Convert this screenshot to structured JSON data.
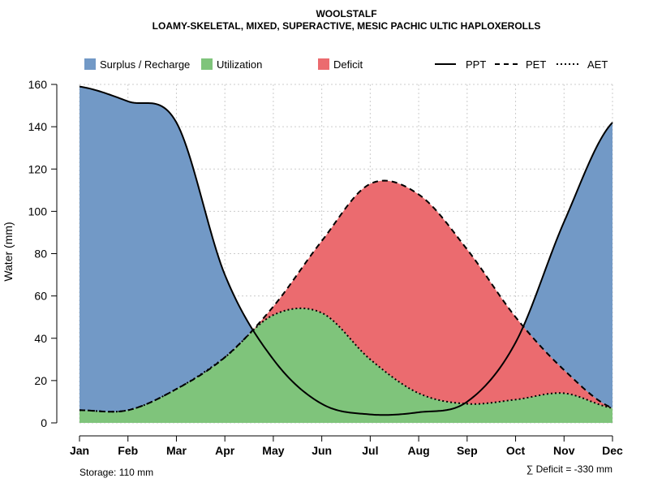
{
  "chart_data": {
    "type": "area",
    "title": "WOOLSTALF",
    "subtitle": "LOAMY-SKELETAL, MIXED, SUPERACTIVE, MESIC PACHIC ULTIC HAPLOXEROLLS",
    "ylabel": "Water (mm)",
    "xlabel": "",
    "ylim": [
      0,
      160
    ],
    "yticks": [
      0,
      20,
      40,
      60,
      80,
      100,
      120,
      140,
      160
    ],
    "grid": true,
    "categories": [
      "Jan",
      "Feb",
      "Mar",
      "Apr",
      "May",
      "Jun",
      "Jul",
      "Aug",
      "Sep",
      "Oct",
      "Nov",
      "Dec"
    ],
    "series": [
      {
        "name": "PPT",
        "style": "solid",
        "values": [
          159,
          152,
          142,
          70,
          30,
          9,
          4,
          5,
          10,
          38,
          95,
          142
        ]
      },
      {
        "name": "PET",
        "style": "dashed",
        "values": [
          6,
          6,
          16,
          31,
          55,
          86,
          113,
          108,
          82,
          50,
          25,
          7
        ]
      },
      {
        "name": "AET",
        "style": "dotted",
        "values": [
          6,
          6,
          16,
          31,
          51,
          52,
          30,
          14,
          9,
          11,
          14,
          7
        ]
      }
    ],
    "areas": [
      {
        "name": "Surplus / Recharge",
        "color": "#7299c6"
      },
      {
        "name": "Utilization",
        "color": "#7fc47b"
      },
      {
        "name": "Deficit",
        "color": "#eb6b6f"
      }
    ],
    "legend": {
      "position": "top",
      "fills": [
        "Surplus / Recharge",
        "Utilization",
        "Deficit"
      ],
      "lines": [
        "PPT",
        "PET",
        "AET"
      ]
    },
    "annotations": {
      "storage": "Storage: 110 mm",
      "deficit": "∑ Deficit = -330 mm"
    }
  }
}
